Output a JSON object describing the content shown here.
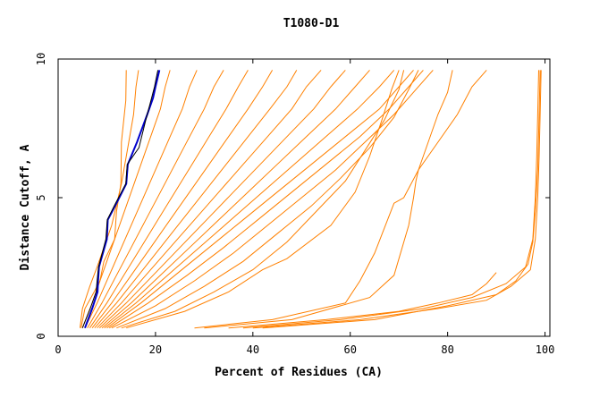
{
  "chart_data": {
    "type": "line",
    "title": "T1080-D1",
    "xlabel": "Percent of Residues (CA)",
    "ylabel": "Distance Cutoff, A",
    "xlim": [
      0,
      101
    ],
    "ylim": [
      0,
      10
    ],
    "x_ticks": [
      "0",
      "20",
      "40",
      "60",
      "80",
      "100"
    ],
    "y_ticks": [
      "0",
      "5",
      "10"
    ],
    "grid": false,
    "colors": {
      "models": "#ff8000",
      "highlight": "#0000cc",
      "reference": "#000000"
    },
    "series": [
      {
        "style": "highlight",
        "x": [
          5.5,
          7.0,
          8.1,
          8.2,
          8.4,
          10.0,
          10.2,
          12.0,
          14.0,
          14.3,
          16.2,
          18.3,
          19.5,
          20.0,
          20.8
        ],
        "y": [
          0.3,
          1.0,
          1.6,
          2.0,
          2.5,
          3.5,
          4.2,
          4.8,
          5.5,
          6.2,
          7.0,
          8.0,
          8.6,
          9.0,
          9.6
        ]
      },
      {
        "style": "reference",
        "x": [
          5.0,
          6.6,
          7.8,
          8.0,
          8.3,
          9.8,
          10.1,
          11.8,
          13.9,
          14.2,
          16.6,
          18.0,
          19.2,
          19.8,
          20.5
        ],
        "y": [
          0.3,
          1.0,
          1.6,
          2.0,
          2.5,
          3.5,
          4.2,
          4.8,
          5.5,
          6.2,
          6.8,
          7.8,
          8.6,
          9.0,
          9.6
        ]
      },
      {
        "style": "model",
        "x": [
          4.7,
          5.5,
          7.4,
          8.6,
          9.4,
          11.6,
          12.0,
          12.9,
          13.0,
          13.9,
          14.0
        ],
        "y": [
          0.3,
          1.0,
          1.6,
          2.0,
          2.7,
          3.5,
          4.5,
          5.5,
          7.0,
          8.5,
          9.6
        ]
      },
      {
        "style": "model",
        "x": [
          4.5,
          5.0,
          6.5,
          8.0,
          9.0,
          11.0,
          13.0,
          14.5,
          15.5,
          16.0,
          16.5
        ],
        "y": [
          0.3,
          1.0,
          1.8,
          2.5,
          3.0,
          4.0,
          5.5,
          7.0,
          8.0,
          9.0,
          9.6
        ]
      },
      {
        "style": "model",
        "x": [
          5.0,
          7.0,
          9.0,
          11.0,
          13.0,
          15.0,
          17.0,
          19.0,
          21.0,
          22.0,
          23.0
        ],
        "y": [
          0.3,
          1.2,
          2.2,
          3.2,
          4.2,
          5.2,
          6.2,
          7.2,
          8.2,
          9.0,
          9.6
        ]
      },
      {
        "style": "model",
        "x": [
          5.5,
          8.0,
          10.5,
          13.0,
          15.5,
          18.0,
          20.5,
          23.0,
          25.5,
          27.0,
          28.5
        ],
        "y": [
          0.3,
          1.2,
          2.2,
          3.2,
          4.2,
          5.2,
          6.2,
          7.2,
          8.2,
          9.0,
          9.6
        ]
      },
      {
        "style": "model",
        "x": [
          6.0,
          9.0,
          12.0,
          15.0,
          18.0,
          21.0,
          24.0,
          27.0,
          30.0,
          32.0,
          34.0
        ],
        "y": [
          0.3,
          1.2,
          2.2,
          3.2,
          4.2,
          5.2,
          6.2,
          7.2,
          8.2,
          9.0,
          9.6
        ]
      },
      {
        "style": "model",
        "x": [
          6.5,
          10.0,
          13.5,
          17.0,
          20.5,
          24.0,
          27.5,
          31.0,
          34.5,
          37.0,
          39.0
        ],
        "y": [
          0.3,
          1.2,
          2.2,
          3.2,
          4.2,
          5.2,
          6.2,
          7.2,
          8.2,
          9.0,
          9.6
        ]
      },
      {
        "style": "model",
        "x": [
          7.0,
          11.0,
          15.0,
          19.0,
          23.0,
          27.0,
          31.0,
          35.0,
          39.0,
          42.0,
          44.0
        ],
        "y": [
          0.3,
          1.2,
          2.2,
          3.2,
          4.2,
          5.2,
          6.2,
          7.2,
          8.2,
          9.0,
          9.6
        ]
      },
      {
        "style": "model",
        "x": [
          7.5,
          12.0,
          16.5,
          21.0,
          25.5,
          30.0,
          34.5,
          39.0,
          43.5,
          47.0,
          49.0
        ],
        "y": [
          0.3,
          1.2,
          2.2,
          3.2,
          4.2,
          5.2,
          6.2,
          7.2,
          8.2,
          9.0,
          9.6
        ]
      },
      {
        "style": "model",
        "x": [
          8.0,
          13.0,
          18.0,
          23.0,
          28.0,
          33.0,
          38.0,
          43.0,
          48.0,
          51.0,
          54.0
        ],
        "y": [
          0.3,
          1.2,
          2.2,
          3.2,
          4.2,
          5.2,
          6.2,
          7.2,
          8.2,
          9.0,
          9.6
        ]
      },
      {
        "style": "model",
        "x": [
          8.5,
          14.0,
          19.5,
          25.0,
          30.5,
          36.0,
          41.5,
          47.0,
          52.5,
          56.0,
          59.0
        ],
        "y": [
          0.3,
          1.2,
          2.2,
          3.2,
          4.2,
          5.2,
          6.2,
          7.2,
          8.2,
          9.0,
          9.6
        ]
      },
      {
        "style": "model",
        "x": [
          9.0,
          15.0,
          21.0,
          27.0,
          33.0,
          39.0,
          45.0,
          51.0,
          57.0,
          61.0,
          64.0
        ],
        "y": [
          0.3,
          1.2,
          2.2,
          3.2,
          4.2,
          5.2,
          6.2,
          7.2,
          8.2,
          9.0,
          9.6
        ]
      },
      {
        "style": "model",
        "x": [
          9.5,
          16.0,
          22.5,
          29.0,
          35.5,
          42.0,
          48.5,
          55.0,
          61.5,
          66.0,
          69.0
        ],
        "y": [
          0.3,
          1.2,
          2.2,
          3.2,
          4.2,
          5.2,
          6.2,
          7.2,
          8.2,
          9.0,
          9.6
        ]
      },
      {
        "style": "model",
        "x": [
          10.0,
          17.0,
          24.0,
          31.0,
          38.0,
          45.0,
          52.0,
          59.0,
          66.0,
          70.0,
          73.0
        ],
        "y": [
          0.3,
          1.2,
          2.2,
          3.2,
          4.2,
          5.2,
          6.2,
          7.2,
          8.2,
          9.0,
          9.6
        ]
      },
      {
        "style": "model",
        "x": [
          10.5,
          18.5,
          26.5,
          34.0,
          41.0,
          48.0,
          55.0,
          62.0,
          68.0,
          72.0,
          75.0
        ],
        "y": [
          0.3,
          1.2,
          2.2,
          3.2,
          4.2,
          5.2,
          6.2,
          7.2,
          8.2,
          9.0,
          9.6
        ]
      },
      {
        "style": "model",
        "x": [
          11.0,
          20.0,
          28.0,
          36.0,
          43.0,
          50.0,
          57.0,
          63.0,
          69.0,
          73.5,
          77.0
        ],
        "y": [
          0.3,
          1.1,
          2.0,
          3.0,
          4.0,
          5.0,
          6.0,
          7.0,
          8.0,
          8.9,
          9.6
        ]
      },
      {
        "style": "model",
        "x": [
          12.0,
          22.0,
          30.0,
          38.0,
          45.0,
          52.0,
          58.0,
          64.0,
          69.0,
          72.0,
          74.0
        ],
        "y": [
          0.3,
          1.0,
          1.8,
          2.7,
          3.7,
          4.7,
          5.7,
          6.8,
          7.9,
          8.9,
          9.6
        ]
      },
      {
        "style": "model",
        "x": [
          13.0,
          24.0,
          32.0,
          40.0,
          47.0,
          53.0,
          59.0,
          63.0,
          67.0,
          70.0,
          71.0
        ],
        "y": [
          0.3,
          0.9,
          1.6,
          2.4,
          3.4,
          4.5,
          5.6,
          6.7,
          7.8,
          8.9,
          9.6
        ]
      },
      {
        "style": "model",
        "x": [
          14.0,
          26.0,
          35.0,
          42.0,
          47.0,
          56.0,
          61.0,
          64.0,
          66.5,
          68.5,
          70.0
        ],
        "y": [
          0.3,
          0.9,
          1.6,
          2.4,
          2.8,
          4.0,
          5.2,
          6.5,
          7.8,
          8.9,
          9.6
        ]
      },
      {
        "style": "model",
        "x": [
          28.0,
          44.0,
          59.0,
          62.0,
          65.0,
          69.0,
          71.0,
          74.0,
          78.0,
          82.0,
          85.0,
          88.0
        ],
        "y": [
          0.3,
          0.6,
          1.2,
          2.0,
          3.0,
          4.8,
          5.0,
          6.0,
          7.0,
          8.0,
          9.0,
          9.6
        ]
      },
      {
        "style": "model",
        "x": [
          30.0,
          48.0,
          64.0,
          69.0,
          72.0,
          73.0,
          73.5,
          74.0,
          76.0,
          78.0,
          80.0,
          81.0
        ],
        "y": [
          0.3,
          0.6,
          1.4,
          2.2,
          4.0,
          5.0,
          5.6,
          6.0,
          7.0,
          8.0,
          8.8,
          9.6
        ]
      },
      {
        "style": "model",
        "x": [
          35.0,
          55.0,
          70.0,
          78.0,
          85.0,
          88.0,
          90.0
        ],
        "y": [
          0.3,
          0.6,
          0.9,
          1.2,
          1.5,
          1.9,
          2.3
        ]
      },
      {
        "style": "model",
        "x": [
          38.0,
          58.0,
          75.0,
          85.0,
          92.0,
          96.0,
          97.5,
          98.0,
          98.3,
          98.5,
          98.7
        ],
        "y": [
          0.3,
          0.6,
          1.0,
          1.4,
          1.9,
          2.5,
          3.5,
          5.0,
          6.5,
          8.0,
          9.6
        ]
      },
      {
        "style": "model",
        "x": [
          40.0,
          62.0,
          78.0,
          88.0,
          93.0,
          97.0,
          98.0,
          98.5,
          98.8,
          99.0,
          99.2
        ],
        "y": [
          0.3,
          0.6,
          1.0,
          1.3,
          1.8,
          2.4,
          3.5,
          5.0,
          6.5,
          8.0,
          9.6
        ]
      },
      {
        "style": "model",
        "x": [
          42.0,
          65.0,
          80.0,
          90.0,
          94.0,
          96.5,
          97.5,
          98.0,
          98.5,
          98.8,
          99.0
        ],
        "y": [
          0.3,
          0.6,
          1.1,
          1.5,
          2.0,
          2.6,
          3.4,
          4.5,
          6.0,
          8.0,
          9.6
        ]
      }
    ]
  }
}
